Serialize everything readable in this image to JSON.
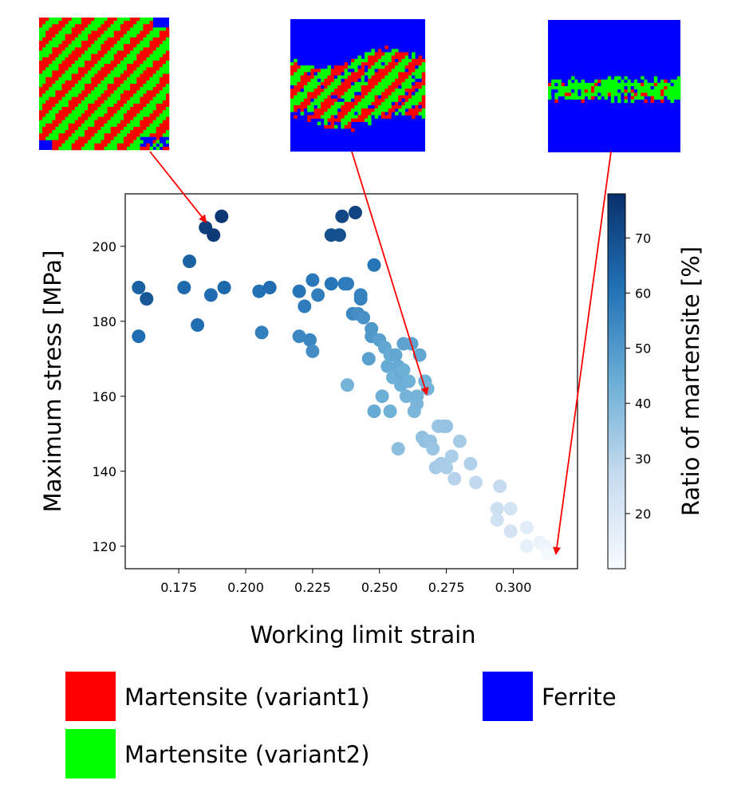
{
  "chart_data": {
    "type": "scatter",
    "title": "",
    "xlabel": "Working limit strain",
    "ylabel": "Maximum stress [MPa]",
    "xlim": [
      0.155,
      0.324
    ],
    "ylim": [
      114,
      214
    ],
    "xticks": [
      "0.175",
      "0.200",
      "0.225",
      "0.250",
      "0.275",
      "0.300"
    ],
    "yticks": [
      "120",
      "140",
      "160",
      "180",
      "200"
    ],
    "colorbar": {
      "label": "Ratio of martensite [%]",
      "min": 10,
      "max": 78,
      "ticks": [
        "20",
        "30",
        "40",
        "50",
        "60",
        "70"
      ]
    },
    "points": [
      [
        0.16,
        189,
        65
      ],
      [
        0.16,
        176,
        62
      ],
      [
        0.163,
        186,
        68
      ],
      [
        0.177,
        189,
        63
      ],
      [
        0.179,
        196,
        65
      ],
      [
        0.182,
        179,
        62
      ],
      [
        0.185,
        205,
        74
      ],
      [
        0.187,
        187,
        62
      ],
      [
        0.188,
        203,
        75
      ],
      [
        0.191,
        208,
        76
      ],
      [
        0.192,
        189,
        63
      ],
      [
        0.205,
        188,
        61
      ],
      [
        0.206,
        177,
        57
      ],
      [
        0.209,
        189,
        62
      ],
      [
        0.22,
        188,
        60
      ],
      [
        0.22,
        176,
        55
      ],
      [
        0.222,
        184,
        58
      ],
      [
        0.224,
        175,
        55
      ],
      [
        0.225,
        172,
        53
      ],
      [
        0.225,
        191,
        59
      ],
      [
        0.227,
        187,
        57
      ],
      [
        0.232,
        190,
        60
      ],
      [
        0.232,
        203,
        70
      ],
      [
        0.235,
        203,
        70
      ],
      [
        0.236,
        208,
        72
      ],
      [
        0.237,
        190,
        59
      ],
      [
        0.238,
        190,
        58
      ],
      [
        0.238,
        163,
        42
      ],
      [
        0.24,
        182,
        55
      ],
      [
        0.241,
        209,
        73
      ],
      [
        0.242,
        182,
        53
      ],
      [
        0.243,
        186,
        56
      ],
      [
        0.243,
        187,
        56
      ],
      [
        0.244,
        181,
        52
      ],
      [
        0.246,
        170,
        48
      ],
      [
        0.247,
        178,
        50
      ],
      [
        0.247,
        176,
        50
      ],
      [
        0.248,
        156,
        45
      ],
      [
        0.248,
        195,
        60
      ],
      [
        0.25,
        175,
        48
      ],
      [
        0.251,
        160,
        44
      ],
      [
        0.252,
        173,
        46
      ],
      [
        0.253,
        168,
        45
      ],
      [
        0.254,
        171,
        45
      ],
      [
        0.254,
        156,
        43
      ],
      [
        0.255,
        165,
        43
      ],
      [
        0.256,
        171,
        46
      ],
      [
        0.257,
        146,
        38
      ],
      [
        0.257,
        168,
        45
      ],
      [
        0.258,
        166,
        45
      ],
      [
        0.258,
        163,
        44
      ],
      [
        0.259,
        174,
        47
      ],
      [
        0.259,
        167,
        44
      ],
      [
        0.26,
        160,
        42
      ],
      [
        0.261,
        164,
        43
      ],
      [
        0.262,
        174,
        47
      ],
      [
        0.263,
        156,
        41
      ],
      [
        0.264,
        158,
        41
      ],
      [
        0.264,
        160,
        42
      ],
      [
        0.265,
        171,
        46
      ],
      [
        0.266,
        149,
        37
      ],
      [
        0.267,
        148,
        37
      ],
      [
        0.267,
        164,
        43
      ],
      [
        0.268,
        162,
        42
      ],
      [
        0.269,
        148,
        36
      ],
      [
        0.27,
        146,
        35
      ],
      [
        0.271,
        141,
        33
      ],
      [
        0.272,
        152,
        35
      ],
      [
        0.273,
        142,
        33
      ],
      [
        0.274,
        152,
        36
      ],
      [
        0.275,
        152,
        36
      ],
      [
        0.275,
        141,
        32
      ],
      [
        0.277,
        144,
        32
      ],
      [
        0.278,
        138,
        30
      ],
      [
        0.28,
        148,
        33
      ],
      [
        0.284,
        142,
        31
      ],
      [
        0.286,
        137,
        28
      ],
      [
        0.294,
        130,
        25
      ],
      [
        0.294,
        127,
        24
      ],
      [
        0.295,
        136,
        27
      ],
      [
        0.299,
        124,
        22
      ],
      [
        0.299,
        130,
        23
      ],
      [
        0.305,
        120,
        16
      ],
      [
        0.305,
        125,
        18
      ],
      [
        0.31,
        121,
        14
      ],
      [
        0.312,
        120,
        13
      ],
      [
        0.313,
        118,
        11
      ],
      [
        0.315,
        118,
        11
      ]
    ]
  },
  "microstructures": [
    {
      "name": "high-martensite",
      "bands": "full"
    },
    {
      "name": "mid-martensite",
      "bands": "middle"
    },
    {
      "name": "low-martensite",
      "bands": "thin"
    }
  ],
  "legend": [
    {
      "label": "Martensite (variant1)",
      "color": "#ff0000"
    },
    {
      "label": "Ferrite",
      "color": "#0000ff"
    },
    {
      "label": "Martensite (variant2)",
      "color": "#00ff00"
    }
  ],
  "colors": {
    "ferrite": "#0000ff",
    "variant1": "#ff0000",
    "variant2": "#00ff00",
    "arrow": "#ff0000"
  }
}
